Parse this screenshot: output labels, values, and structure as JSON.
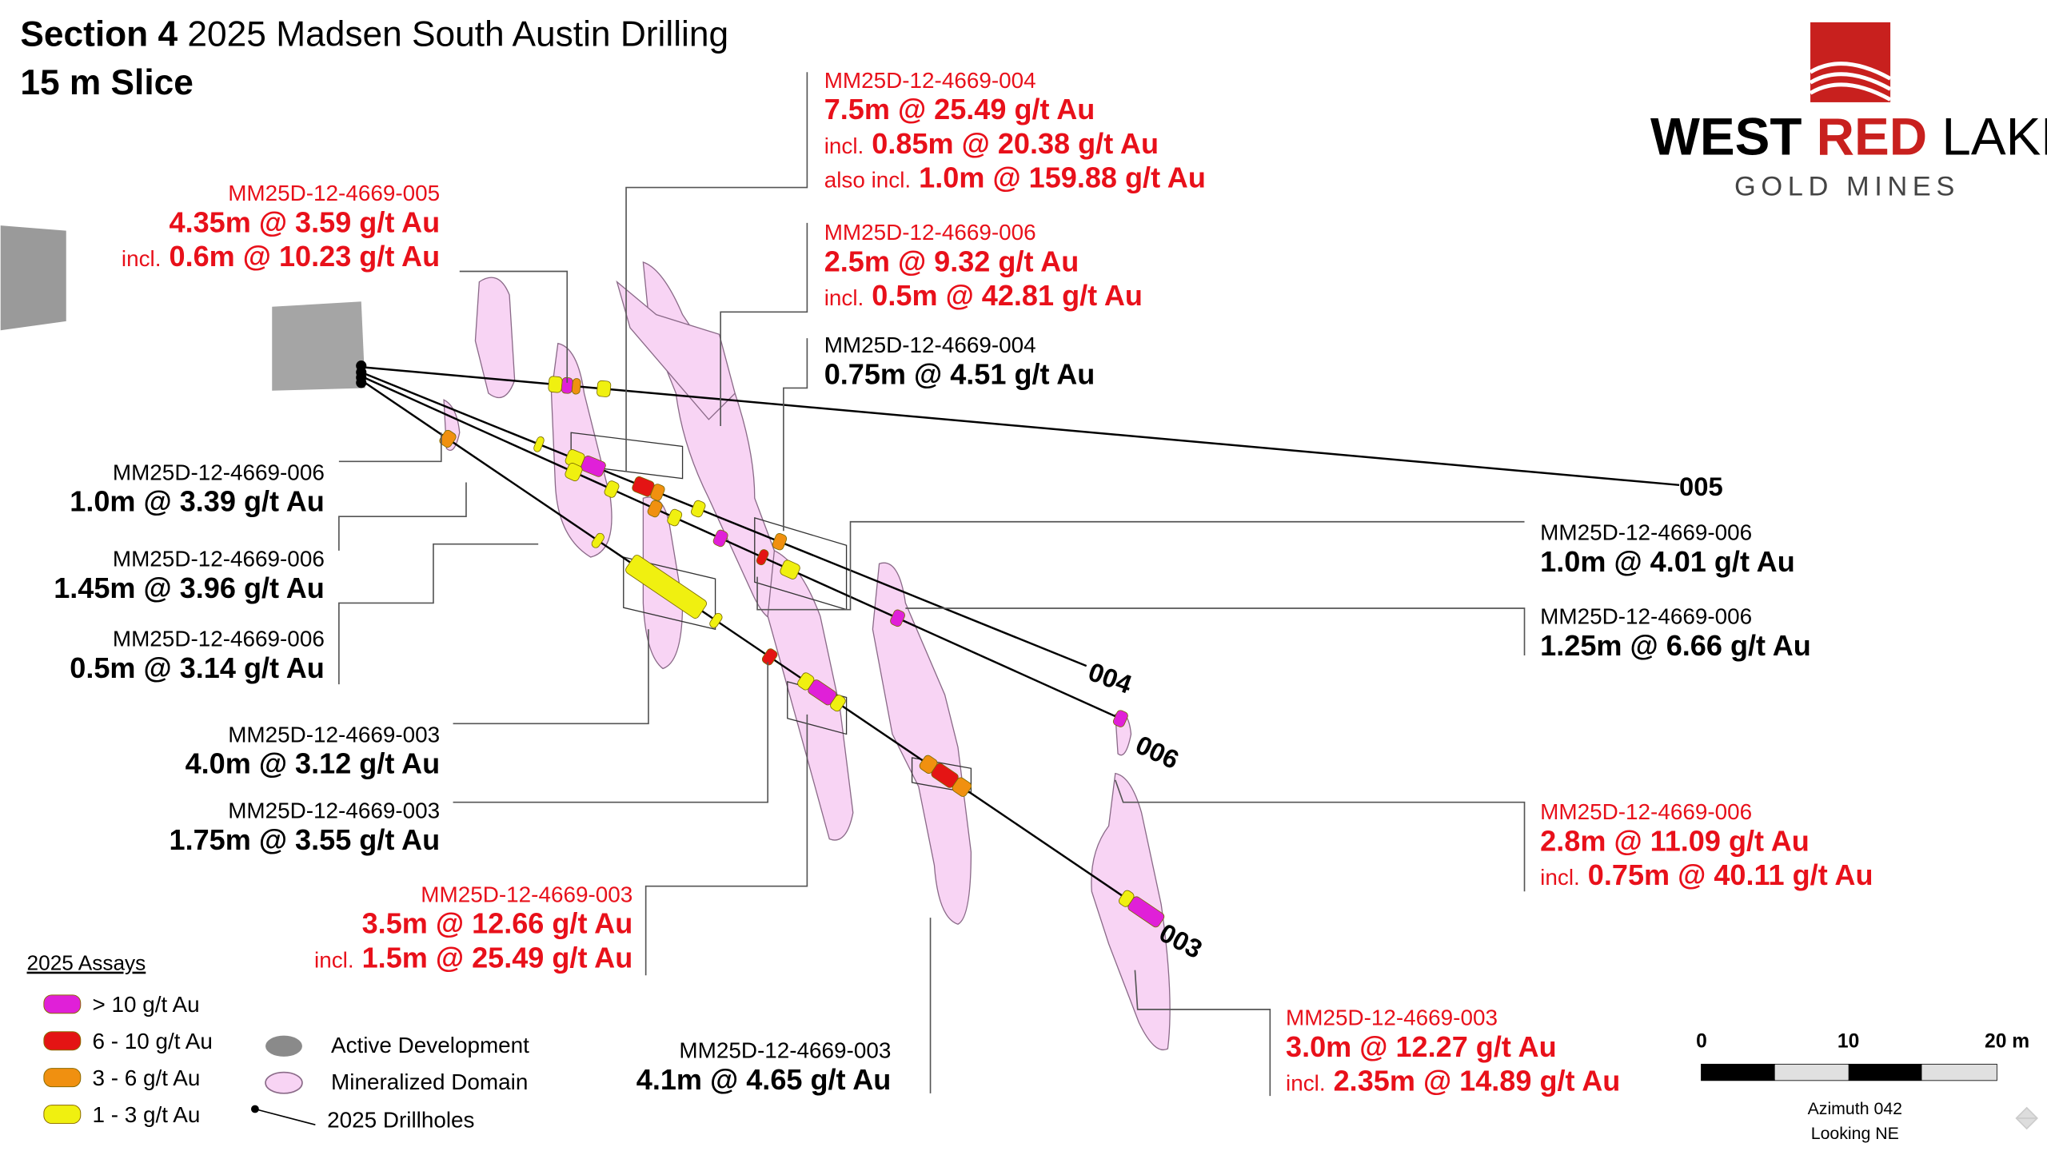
{
  "header": {
    "title_bold": "Section 4",
    "title": "2025 Madsen South Austin Drilling",
    "subtitle": "15 m Slice"
  },
  "logo": {
    "word1": "WEST",
    "word2": "RED",
    "word3": "LAKE",
    "tagline": "GOLD MINES"
  },
  "callouts": [
    {
      "id": "MM25D-12-4669-005",
      "color": "#e8101a",
      "lines": [
        {
          "text": "4.35m @ 3.59 g/t Au"
        },
        {
          "prefix": "incl.",
          "text": "0.6m @ 10.23 g/t Au"
        }
      ]
    },
    {
      "id": "MM25D-12-4669-004",
      "color": "#e8101a",
      "lines": [
        {
          "text": "7.5m @ 25.49 g/t Au"
        },
        {
          "prefix": "incl.",
          "text": "0.85m @ 20.38 g/t Au"
        },
        {
          "prefix": "also incl.",
          "text": "1.0m @ 159.88 g/t Au"
        }
      ]
    },
    {
      "id": "MM25D-12-4669-006",
      "color": "#e8101a",
      "lines": [
        {
          "text": "2.5m @ 9.32 g/t Au"
        },
        {
          "prefix": "incl.",
          "text": "0.5m @ 42.81 g/t Au"
        }
      ]
    },
    {
      "id": "MM25D-12-4669-004",
      "color": "#000000",
      "lines": [
        {
          "text": "0.75m @ 4.51 g/t Au"
        }
      ]
    },
    {
      "id": "MM25D-12-4669-006",
      "color": "#000000",
      "lines": [
        {
          "text": "1.0m @ 3.39 g/t Au"
        }
      ]
    },
    {
      "id": "MM25D-12-4669-006",
      "color": "#000000",
      "lines": [
        {
          "text": "1.45m @ 3.96 g/t Au"
        }
      ]
    },
    {
      "id": "MM25D-12-4669-006",
      "color": "#000000",
      "lines": [
        {
          "text": "0.5m @ 3.14 g/t Au"
        }
      ]
    },
    {
      "id": "MM25D-12-4669-003",
      "color": "#000000",
      "lines": [
        {
          "text": "4.0m @ 3.12 g/t Au"
        }
      ]
    },
    {
      "id": "MM25D-12-4669-003",
      "color": "#000000",
      "lines": [
        {
          "text": "1.75m @ 3.55 g/t Au"
        }
      ]
    },
    {
      "id": "MM25D-12-4669-003",
      "color": "#e8101a",
      "lines": [
        {
          "text": "3.5m @ 12.66 g/t Au"
        },
        {
          "prefix": "incl.",
          "text": "1.5m @ 25.49 g/t Au"
        }
      ]
    },
    {
      "id": "MM25D-12-4669-003",
      "color": "#000000",
      "lines": [
        {
          "text": "4.1m @ 4.65 g/t Au"
        }
      ]
    },
    {
      "id": "MM25D-12-4669-006",
      "color": "#000000",
      "lines": [
        {
          "text": "1.0m @ 4.01 g/t Au"
        }
      ]
    },
    {
      "id": "MM25D-12-4669-006",
      "color": "#000000",
      "lines": [
        {
          "text": "1.25m @ 6.66 g/t Au"
        }
      ]
    },
    {
      "id": "MM25D-12-4669-006",
      "color": "#e8101a",
      "lines": [
        {
          "text": "2.8m @ 11.09 g/t Au"
        },
        {
          "prefix": "incl.",
          "text": "0.75m @ 40.11 g/t Au"
        }
      ]
    },
    {
      "id": "MM25D-12-4669-003",
      "color": "#e8101a",
      "lines": [
        {
          "text": "3.0m @ 12.27 g/t Au"
        },
        {
          "prefix": "incl.",
          "text": "2.35m @ 14.89 g/t Au"
        }
      ]
    }
  ],
  "hole_labels": [
    "005",
    "004",
    "006",
    "003"
  ],
  "legend": {
    "title": "2025 Assays",
    "assays": [
      "> 10 g/t Au",
      "6 - 10 g/t Au",
      "3 - 6 g/t Au",
      "1 - 3 g/t Au"
    ],
    "features": [
      "Active Development",
      "Mineralized Domain",
      "2025 Drillholes"
    ]
  },
  "scale_bar": {
    "ticks": [
      "0",
      "10",
      "20 m"
    ],
    "azimuth": "Azimuth 042",
    "view": "Looking NE"
  }
}
